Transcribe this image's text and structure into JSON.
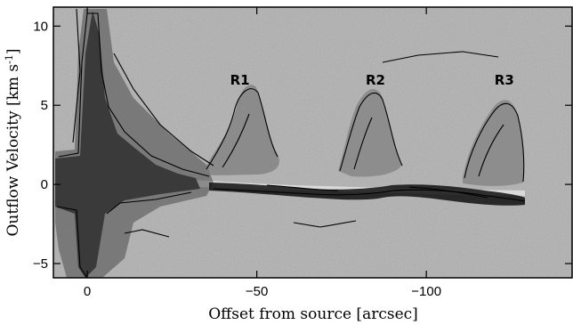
{
  "chart_data": {
    "type": "heatmap",
    "title": "",
    "xlabel": "Offset from source [arcsec]",
    "ylabel_main": "Outflow Velocity  [km s",
    "ylabel_sup": "-1",
    "ylabel_end": "]",
    "xlim": [
      10,
      -143
    ],
    "ylim": [
      -5.9,
      11.2
    ],
    "x_ticks": [
      {
        "value": 0,
        "label": "0"
      },
      {
        "value": -50,
        "label": "−50"
      },
      {
        "value": -100,
        "label": "−100"
      }
    ],
    "y_ticks": [
      {
        "value": 10,
        "label": "10"
      },
      {
        "value": 5,
        "label": "5"
      },
      {
        "value": 0,
        "label": "0"
      },
      {
        "value": -5,
        "label": "−5"
      }
    ],
    "grid": false,
    "background": "grayscale",
    "annotations": [
      {
        "text": "R1",
        "x": -45,
        "y": 6.3
      },
      {
        "text": "R2",
        "x": -85,
        "y": 6.3
      },
      {
        "text": "R3",
        "x": -123,
        "y": 6.3
      }
    ]
  }
}
